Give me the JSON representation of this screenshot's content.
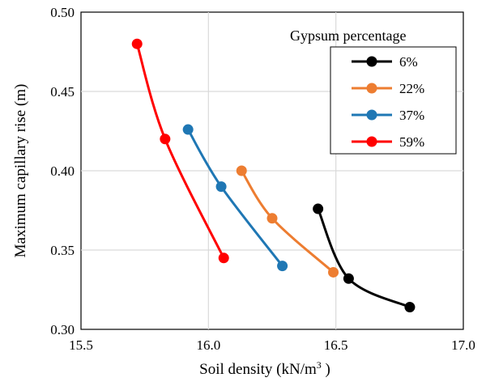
{
  "chart_data": {
    "type": "line",
    "xlabel": "Soil density (kN/m",
    "xlabel_sup": "3",
    "xlabel_end": " )",
    "ylabel": "Maximum capillary rise (m)",
    "xlim": [
      15.5,
      17.0
    ],
    "ylim": [
      0.3,
      0.5
    ],
    "x_ticks": [
      "15.5",
      "16.0",
      "16.5",
      "17.0"
    ],
    "y_ticks": [
      "0.30",
      "0.35",
      "0.40",
      "0.45",
      "0.50"
    ],
    "grid": true,
    "legend_title": "Gypsum  percentage",
    "legend_position": "top-right",
    "series": [
      {
        "name": "6%",
        "color": "#000000",
        "x": [
          16.43,
          16.55,
          16.79
        ],
        "y": [
          0.376,
          0.332,
          0.314
        ]
      },
      {
        "name": "22%",
        "color": "#ED7D31",
        "x": [
          16.13,
          16.25,
          16.49
        ],
        "y": [
          0.4,
          0.37,
          0.336
        ]
      },
      {
        "name": "37%",
        "color": "#1F77B4",
        "x": [
          15.92,
          16.05,
          16.29
        ],
        "y": [
          0.426,
          0.39,
          0.34
        ]
      },
      {
        "name": "59%",
        "color": "#FF0000",
        "x": [
          15.72,
          15.83,
          16.06
        ],
        "y": [
          0.48,
          0.42,
          0.345
        ]
      }
    ]
  }
}
